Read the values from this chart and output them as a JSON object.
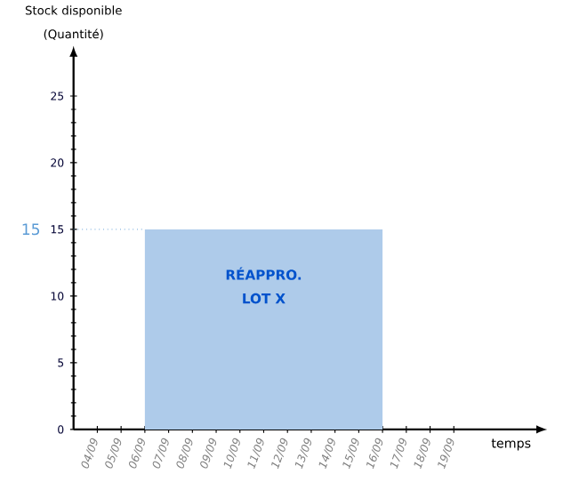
{
  "chart_data": {
    "type": "area",
    "xlabel": "temps",
    "ylabel": "Stock disponible (Quantité)",
    "categories": [
      "04/09",
      "05/09",
      "06/09",
      "07/09",
      "08/09",
      "09/09",
      "10/09",
      "11/09",
      "12/09",
      "13/09",
      "14/09",
      "15/09",
      "16/09",
      "17/09",
      "18/09",
      "19/09"
    ],
    "series": [
      {
        "color": "#aecbea",
        "values": [
          null,
          null,
          15,
          15,
          15,
          15,
          15,
          15,
          15,
          15,
          15,
          15,
          15,
          null,
          null,
          null
        ]
      }
    ],
    "annotations": [
      "RÉAPPRO. LOT X"
    ],
    "ref_lines": [
      {
        "axis": "y",
        "value": 15,
        "label": "15",
        "color": "#5b9bd5",
        "line_style": "dotted"
      }
    ],
    "ylim": [
      0,
      28
    ],
    "yticks": [
      0,
      5,
      10,
      15,
      20,
      25
    ],
    "grid": false
  }
}
